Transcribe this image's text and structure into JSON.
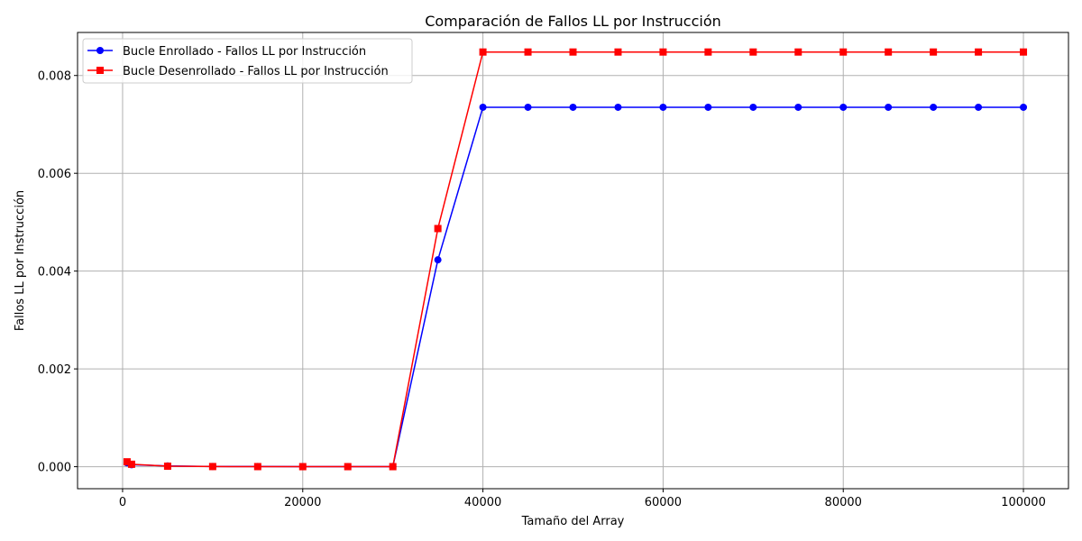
{
  "chart_data": {
    "type": "line",
    "title": "Comparación de Fallos LL por Instrucción",
    "xlabel": "Tamaño del Array",
    "ylabel": "Fallos LL por Instrucción",
    "xlim": [
      -5000,
      105000
    ],
    "ylim": [
      -0.00045,
      0.00888
    ],
    "x_ticks": [
      0,
      20000,
      40000,
      60000,
      80000,
      100000
    ],
    "x_tick_labels": [
      "0",
      "20000",
      "40000",
      "60000",
      "80000",
      "100000"
    ],
    "y_ticks": [
      0.0,
      0.002,
      0.004,
      0.006,
      0.008
    ],
    "y_tick_labels": [
      "0.000",
      "0.002",
      "0.004",
      "0.006",
      "0.008"
    ],
    "grid": true,
    "legend_position": "top-left",
    "x": [
      500,
      1000,
      5000,
      10000,
      15000,
      20000,
      25000,
      30000,
      35000,
      40000,
      45000,
      50000,
      55000,
      60000,
      65000,
      70000,
      75000,
      80000,
      85000,
      90000,
      95000,
      100000
    ],
    "series": [
      {
        "name": "Bucle Enrollado - Fallos LL por Instrucción",
        "color": "#0000ff",
        "marker": "circle",
        "values": [
          8e-05,
          4e-05,
          1.5e-05,
          5e-06,
          3e-06,
          2e-06,
          2e-06,
          2e-06,
          0.00423,
          0.00735,
          0.00735,
          0.00735,
          0.00735,
          0.00735,
          0.00735,
          0.00735,
          0.00735,
          0.00735,
          0.00735,
          0.00735,
          0.00735,
          0.00735
        ]
      },
      {
        "name": "Bucle Desenrollado - Fallos LL por Instrucción",
        "color": "#ff0000",
        "marker": "square",
        "values": [
          0.0001,
          5e-05,
          1e-05,
          3e-06,
          2e-06,
          1e-06,
          1e-06,
          1e-06,
          0.00487,
          0.00848,
          0.00848,
          0.00848,
          0.00848,
          0.00848,
          0.00848,
          0.00848,
          0.00848,
          0.00848,
          0.00848,
          0.00848,
          0.00848,
          0.00848
        ]
      }
    ]
  }
}
